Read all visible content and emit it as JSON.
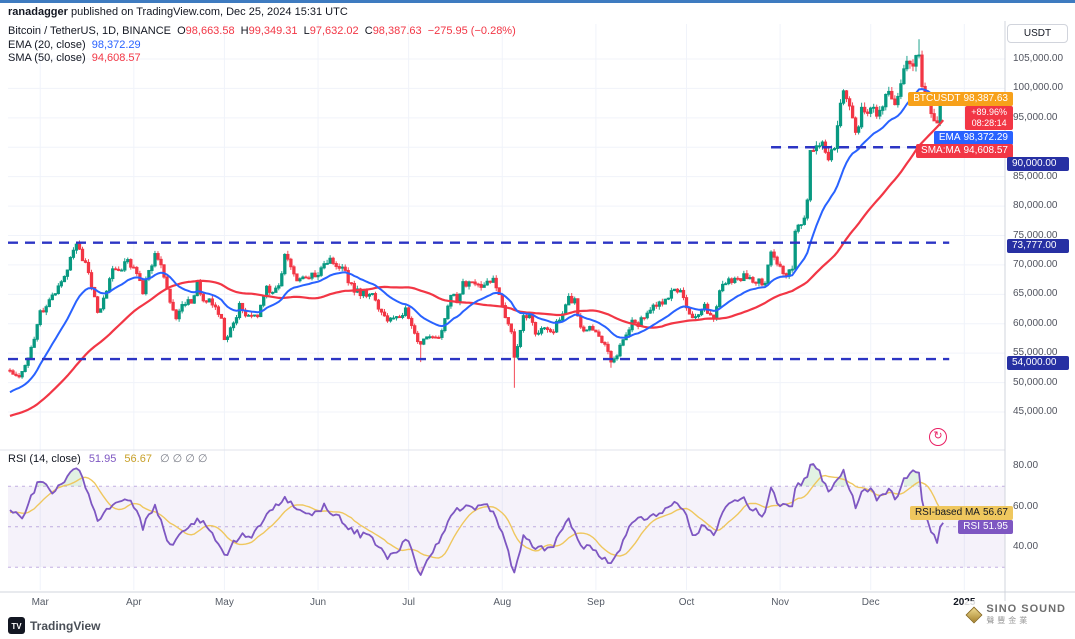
{
  "page": {
    "publisher": "ranadagger",
    "published_text": " published on TradingView.com, Dec 25, 2024 15:31 UTC"
  },
  "header": {
    "symbol": "Bitcoin / TetherUS, 1D, BINANCE",
    "o_label": "O",
    "o": "98,663.58",
    "h_label": "H",
    "h": "99,349.31",
    "l_label": "L",
    "l": "97,632.02",
    "c_label": "C",
    "c": "98,387.63",
    "change": "−275.95 (−0.28%)",
    "ema_label": "EMA (20, close)",
    "ema_value": "98,372.29",
    "sma_label": "SMA (50, close)",
    "sma_value": "94,608.57"
  },
  "axis": {
    "currency_button": "USDT",
    "price_labels": [
      {
        "text": "105,000.00",
        "price": 105000
      },
      {
        "text": "100,000.00",
        "price": 100000
      },
      {
        "text": "95,000.00",
        "price": 95000
      },
      {
        "text": "85,000.00",
        "price": 85000
      },
      {
        "text": "80,000.00",
        "price": 80000
      },
      {
        "text": "75,000.00",
        "price": 75000
      },
      {
        "text": "70,000.00",
        "price": 70000
      },
      {
        "text": "65,000.00",
        "price": 65000
      },
      {
        "text": "60,000.00",
        "price": 60000
      },
      {
        "text": "55,000.00",
        "price": 55000
      },
      {
        "text": "50,000.00",
        "price": 50000
      },
      {
        "text": "45,000.00",
        "price": 45000
      }
    ],
    "rsi_labels": [
      {
        "text": "80.00",
        "value": 80
      },
      {
        "text": "60.00",
        "value": 60
      },
      {
        "text": "40.00",
        "value": 40
      }
    ],
    "badges": {
      "symbol": {
        "label": "BTCUSDT",
        "value": "98,387.63"
      },
      "change": {
        "pct": "+89.96%",
        "countdown": "08:28:14"
      },
      "ema": {
        "label": "EMA",
        "value": "98,372.29"
      },
      "sma": {
        "label": "SMA:MA",
        "value": "94,608.57"
      },
      "level90": {
        "text": "90,000.00"
      },
      "level73": {
        "text": "73,777.00"
      },
      "level54": {
        "text": "54,000.00"
      }
    }
  },
  "rsi_pane": {
    "legend": {
      "title": "RSI (14, close)",
      "rsi_value": "51.95",
      "ma_value": "56.67",
      "empties": "∅ ∅ ∅ ∅"
    },
    "badges": {
      "ma": {
        "label": "RSI-based MA",
        "value": "56.67"
      },
      "rsi": {
        "label": "RSI",
        "value": "51.95"
      }
    }
  },
  "time_axis": {
    "months": [
      {
        "label": "Mar",
        "d": 10
      },
      {
        "label": "Apr",
        "d": 41
      },
      {
        "label": "May",
        "d": 71
      },
      {
        "label": "Jun",
        "d": 102
      },
      {
        "label": "Jul",
        "d": 132
      },
      {
        "label": "Aug",
        "d": 163
      },
      {
        "label": "Sep",
        "d": 194
      },
      {
        "label": "Oct",
        "d": 224
      },
      {
        "label": "Nov",
        "d": 255
      },
      {
        "label": "Dec",
        "d": 285
      },
      {
        "label": "2025",
        "d": 316,
        "emph": true
      }
    ]
  },
  "footer": {
    "tradingview": "TradingView",
    "tv_mark": "TV",
    "watermark_line1": "SINO SOUND",
    "watermark_line2": "聲豐金業"
  },
  "colors": {
    "up": "#089981",
    "down": "#F23645",
    "ema": "#2962FF",
    "sma": "#F23645",
    "level": "#2C35C4",
    "level_badge": "#2730A3",
    "rsi_line": "#7E57C2",
    "rsi_ma": "#EFC75E",
    "symbol_badge": "#F7A11A",
    "overbought_fill": "#4CAF50",
    "oversold_fill": "#F23645",
    "grid": "#F0F3FA",
    "separator": "#D1D4DC"
  },
  "chart_data": {
    "type": "candlestick",
    "symbol": "BTCUSDT",
    "exchange": "BINANCE",
    "interval": "1D",
    "title": "Bitcoin / TetherUS, 1D, BINANCE",
    "last_ohlc": {
      "open": 98663.58,
      "high": 99349.31,
      "low": 97632.02,
      "close": 98387.63,
      "change": -275.95,
      "change_pct": -0.28
    },
    "indicators": {
      "ema20": 98372.29,
      "sma50": 94608.57,
      "rsi14": 51.95,
      "rsi_based_ma": 56.67
    },
    "levels": [
      {
        "price": 90000,
        "from_day": 252
      },
      {
        "price": 73777,
        "from_day": -1
      },
      {
        "price": 54000,
        "from_day": -1
      }
    ],
    "ylim": [
      43000,
      108500
    ],
    "rsi_band": [
      30,
      70
    ],
    "days": 310,
    "price_anchors": [
      [
        -50,
        43900
      ],
      [
        -42,
        42600
      ],
      [
        -37,
        40150
      ],
      [
        -30,
        42050
      ],
      [
        -20,
        43100
      ],
      [
        -12,
        45300
      ],
      [
        -8,
        48000
      ],
      [
        -4,
        51500
      ],
      [
        0,
        51900
      ],
      [
        3,
        51000
      ],
      [
        6,
        54500
      ],
      [
        8,
        57000
      ],
      [
        10,
        61990
      ],
      [
        13,
        63800
      ],
      [
        16,
        66100
      ],
      [
        18,
        68300
      ],
      [
        22,
        73100
      ],
      [
        24,
        71400
      ],
      [
        26,
        68400
      ],
      [
        29,
        61990
      ],
      [
        31,
        63800
      ],
      [
        34,
        69900
      ],
      [
        37,
        69600
      ],
      [
        39,
        70800
      ],
      [
        41,
        69700
      ],
      [
        44,
        65400
      ],
      [
        46,
        69100
      ],
      [
        48,
        71600
      ],
      [
        50,
        70600
      ],
      [
        53,
        63900
      ],
      [
        55,
        61300
      ],
      [
        57,
        63500
      ],
      [
        60,
        64000
      ],
      [
        62,
        66800
      ],
      [
        64,
        64300
      ],
      [
        66,
        63900
      ],
      [
        68,
        62900
      ],
      [
        70,
        60600
      ],
      [
        71,
        56800
      ],
      [
        73,
        59000
      ],
      [
        76,
        62900
      ],
      [
        78,
        61200
      ],
      [
        80,
        60800
      ],
      [
        82,
        61500
      ],
      [
        85,
        66200
      ],
      [
        87,
        65300
      ],
      [
        89,
        67000
      ],
      [
        91,
        71400
      ],
      [
        93,
        69900
      ],
      [
        95,
        67700
      ],
      [
        97,
        68500
      ],
      [
        100,
        68300
      ],
      [
        102,
        67750
      ],
      [
        104,
        70500
      ],
      [
        106,
        71100
      ],
      [
        108,
        69300
      ],
      [
        110,
        69600
      ],
      [
        112,
        67300
      ],
      [
        114,
        66000
      ],
      [
        116,
        64900
      ],
      [
        119,
        65100
      ],
      [
        121,
        64100
      ],
      [
        123,
        61800
      ],
      [
        125,
        60300
      ],
      [
        127,
        61000
      ],
      [
        129,
        60900
      ],
      [
        131,
        62700
      ],
      [
        133,
        60200
      ],
      [
        135,
        57000
      ],
      [
        136,
        56600
      ],
      [
        138,
        57900
      ],
      [
        140,
        58200
      ],
      [
        142,
        57700
      ],
      [
        144,
        60800
      ],
      [
        146,
        64800
      ],
      [
        148,
        64100
      ],
      [
        150,
        66700
      ],
      [
        152,
        67100
      ],
      [
        154,
        66800
      ],
      [
        156,
        65900
      ],
      [
        158,
        67900
      ],
      [
        160,
        67100
      ],
      [
        162,
        64600
      ],
      [
        164,
        61400
      ],
      [
        166,
        58200
      ],
      [
        167,
        54000
      ],
      [
        168,
        56000
      ],
      [
        170,
        61700
      ],
      [
        172,
        60900
      ],
      [
        174,
        58700
      ],
      [
        176,
        58700
      ],
      [
        178,
        59400
      ],
      [
        180,
        58900
      ],
      [
        182,
        61100
      ],
      [
        185,
        64100
      ],
      [
        187,
        63900
      ],
      [
        189,
        59500
      ],
      [
        191,
        59100
      ],
      [
        193,
        58900
      ],
      [
        195,
        57300
      ],
      [
        197,
        56200
      ],
      [
        199,
        53900
      ],
      [
        201,
        54900
      ],
      [
        203,
        57600
      ],
      [
        206,
        60500
      ],
      [
        208,
        60000
      ],
      [
        211,
        61800
      ],
      [
        213,
        63400
      ],
      [
        216,
        63300
      ],
      [
        218,
        64300
      ],
      [
        220,
        65800
      ],
      [
        222,
        65600
      ],
      [
        224,
        63300
      ],
      [
        226,
        60800
      ],
      [
        228,
        62100
      ],
      [
        230,
        62800
      ],
      [
        232,
        61000
      ],
      [
        233,
        60300
      ],
      [
        235,
        65100
      ],
      [
        237,
        67000
      ],
      [
        239,
        67600
      ],
      [
        241,
        67400
      ],
      [
        243,
        68400
      ],
      [
        246,
        66600
      ],
      [
        248,
        67000
      ],
      [
        250,
        66600
      ],
      [
        252,
        72700
      ],
      [
        254,
        70200
      ],
      [
        255,
        69500
      ],
      [
        257,
        67800
      ],
      [
        259,
        69400
      ],
      [
        260,
        75600
      ],
      [
        262,
        76500
      ],
      [
        264,
        80400
      ],
      [
        265,
        88700
      ],
      [
        267,
        90400
      ],
      [
        269,
        91000
      ],
      [
        271,
        87300
      ],
      [
        273,
        90500
      ],
      [
        275,
        97000
      ],
      [
        276,
        98900
      ],
      [
        278,
        97700
      ],
      [
        280,
        91900
      ],
      [
        282,
        95900
      ],
      [
        284,
        96400
      ],
      [
        285,
        97200
      ],
      [
        287,
        95800
      ],
      [
        289,
        96600
      ],
      [
        291,
        99900
      ],
      [
        293,
        97400
      ],
      [
        295,
        101100
      ],
      [
        297,
        104500
      ],
      [
        299,
        104000
      ],
      [
        300,
        106000
      ],
      [
        301,
        106100
      ],
      [
        302,
        100000
      ],
      [
        303,
        97500
      ],
      [
        305,
        95900
      ],
      [
        307,
        94300
      ],
      [
        308,
        98700
      ],
      [
        309,
        98387.63
      ]
    ],
    "wick_overrides": [
      {
        "d": 301,
        "high": 108364
      },
      {
        "d": 167,
        "low": 49121
      },
      {
        "d": 136,
        "low": 53485
      },
      {
        "d": 199,
        "low": 52530
      }
    ],
    "rsi_anchors": [
      [
        -20,
        55
      ],
      [
        0,
        58
      ],
      [
        4,
        55
      ],
      [
        8,
        68
      ],
      [
        10,
        73
      ],
      [
        14,
        66
      ],
      [
        18,
        72
      ],
      [
        22,
        80
      ],
      [
        24,
        75
      ],
      [
        29,
        52
      ],
      [
        34,
        62
      ],
      [
        39,
        63
      ],
      [
        41,
        60
      ],
      [
        44,
        50
      ],
      [
        48,
        60
      ],
      [
        53,
        41
      ],
      [
        57,
        47
      ],
      [
        62,
        54
      ],
      [
        66,
        49
      ],
      [
        70,
        40
      ],
      [
        71,
        35
      ],
      [
        76,
        46
      ],
      [
        80,
        45
      ],
      [
        85,
        55
      ],
      [
        91,
        65
      ],
      [
        95,
        58
      ],
      [
        100,
        55
      ],
      [
        104,
        60
      ],
      [
        108,
        56
      ],
      [
        112,
        50
      ],
      [
        116,
        46
      ],
      [
        119,
        45
      ],
      [
        123,
        40
      ],
      [
        125,
        34
      ],
      [
        129,
        38
      ],
      [
        131,
        45
      ],
      [
        135,
        30
      ],
      [
        136,
        26
      ],
      [
        140,
        38
      ],
      [
        144,
        47
      ],
      [
        146,
        57
      ],
      [
        150,
        60
      ],
      [
        154,
        58
      ],
      [
        158,
        62
      ],
      [
        162,
        50
      ],
      [
        164,
        42
      ],
      [
        167,
        27
      ],
      [
        170,
        45
      ],
      [
        174,
        40
      ],
      [
        176,
        39
      ],
      [
        180,
        41
      ],
      [
        185,
        54
      ],
      [
        189,
        40
      ],
      [
        193,
        40
      ],
      [
        195,
        37
      ],
      [
        199,
        31
      ],
      [
        203,
        42
      ],
      [
        206,
        52
      ],
      [
        211,
        55
      ],
      [
        216,
        57
      ],
      [
        220,
        62
      ],
      [
        224,
        56
      ],
      [
        226,
        45
      ],
      [
        230,
        52
      ],
      [
        233,
        45
      ],
      [
        235,
        55
      ],
      [
        239,
        62
      ],
      [
        243,
        63
      ],
      [
        246,
        58
      ],
      [
        250,
        56
      ],
      [
        252,
        68
      ],
      [
        255,
        60
      ],
      [
        259,
        60
      ],
      [
        260,
        70
      ],
      [
        264,
        74
      ],
      [
        265,
        82
      ],
      [
        267,
        80
      ],
      [
        271,
        67
      ],
      [
        275,
        76
      ],
      [
        276,
        78
      ],
      [
        280,
        60
      ],
      [
        282,
        66
      ],
      [
        285,
        69
      ],
      [
        287,
        63
      ],
      [
        289,
        65
      ],
      [
        291,
        70
      ],
      [
        293,
        63
      ],
      [
        295,
        70
      ],
      [
        297,
        75
      ],
      [
        300,
        77
      ],
      [
        301,
        77
      ],
      [
        302,
        62
      ],
      [
        303,
        55
      ],
      [
        305,
        48
      ],
      [
        307,
        42
      ],
      [
        308,
        50
      ],
      [
        309,
        51.95
      ]
    ]
  }
}
